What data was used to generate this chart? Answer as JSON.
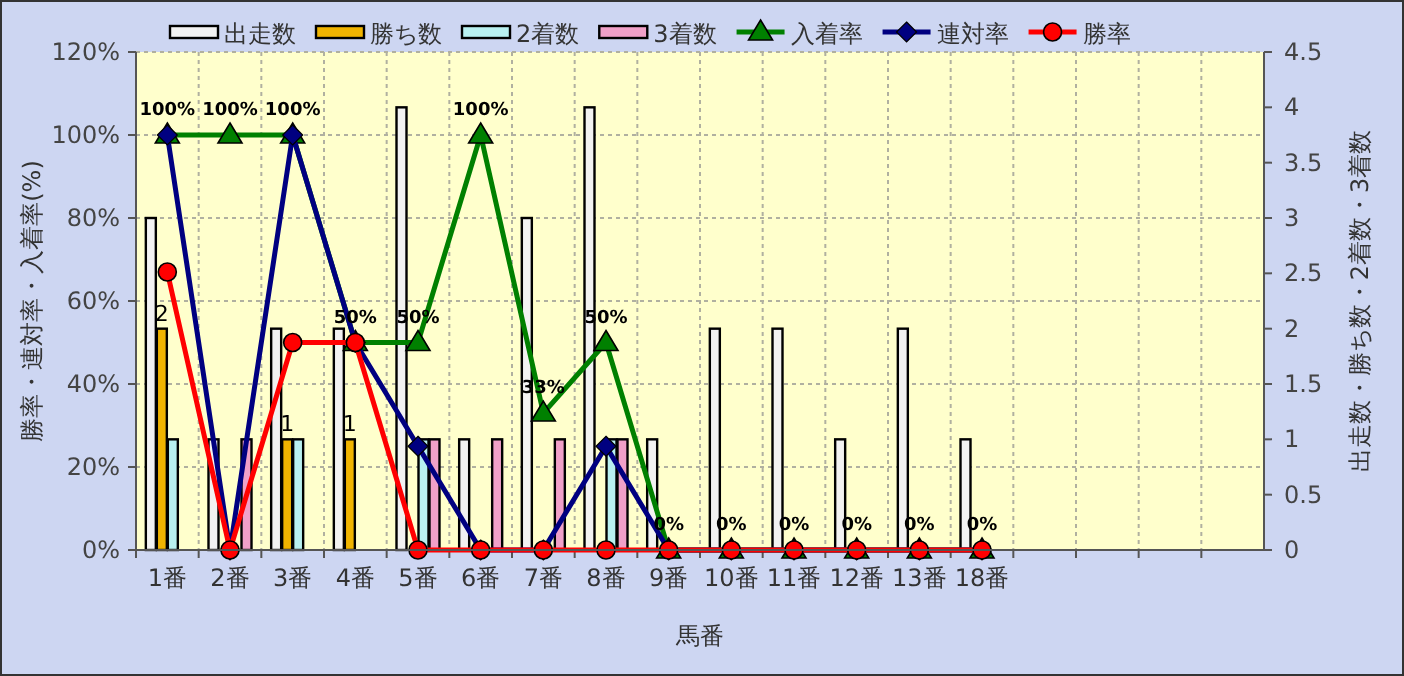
{
  "chart_data": {
    "type": "bar",
    "xlabel": "馬番",
    "ylabel": "勝率・連対率・入着率(%)",
    "y2label": "出走数・勝ち数・2着数・3着数",
    "categories": [
      "1番",
      "2番",
      "3番",
      "4番",
      "5番",
      "6番",
      "7番",
      "8番",
      "9番",
      "10番",
      "11番",
      "12番",
      "13番",
      "18番",
      null,
      null,
      null,
      null
    ],
    "ylim": [
      0,
      120
    ],
    "yticks": [
      {
        "value": 0,
        "label": "0%"
      },
      {
        "value": 20,
        "label": "20%"
      },
      {
        "value": 40,
        "label": "40%"
      },
      {
        "value": 60,
        "label": "60%"
      },
      {
        "value": 80,
        "label": "80%"
      },
      {
        "value": 100,
        "label": "100%"
      },
      {
        "value": 120,
        "label": "120%"
      }
    ],
    "y2lim": [
      0,
      4.5
    ],
    "y2ticks": [
      0,
      0.5,
      1,
      1.5,
      2,
      2.5,
      3,
      3.5,
      4,
      4.5
    ],
    "grid": true,
    "legend": "top",
    "series": [
      {
        "name": "出走数",
        "axis": "y2",
        "color": "#f2f2f2",
        "values": [
          3,
          1,
          2,
          2,
          4,
          1,
          3,
          4,
          1,
          2,
          2,
          1,
          2,
          1,
          null,
          null,
          null,
          null
        ]
      },
      {
        "name": "勝ち数",
        "axis": "y2",
        "color": "#f0b400",
        "values": [
          2,
          0,
          1,
          1,
          0,
          0,
          0,
          0,
          0,
          0,
          0,
          0,
          0,
          0,
          null,
          null,
          null,
          null
        ],
        "value_labels": [
          "2",
          null,
          "1",
          "1",
          null,
          null,
          null,
          null,
          null,
          null,
          null,
          null,
          null,
          null,
          null,
          null,
          null,
          null
        ]
      },
      {
        "name": "2着数",
        "axis": "y2",
        "color": "#b8f0f0",
        "values": [
          1,
          0,
          1,
          0,
          1,
          0,
          0,
          1,
          0,
          0,
          0,
          0,
          0,
          0,
          null,
          null,
          null,
          null
        ]
      },
      {
        "name": "3着数",
        "axis": "y2",
        "color": "#f0a0c8",
        "values": [
          0,
          1,
          0,
          0,
          1,
          1,
          1,
          1,
          0,
          0,
          0,
          0,
          0,
          0,
          null,
          null,
          null,
          null
        ]
      },
      {
        "name": "入着率",
        "type": "line",
        "color": "#008000",
        "marker": "triangle",
        "values": [
          100,
          100,
          100,
          50,
          50,
          100,
          33,
          50,
          0,
          0,
          0,
          0,
          0,
          0,
          null,
          null,
          null,
          null
        ],
        "value_labels": [
          "100%",
          "100%",
          "100%",
          "50%",
          "50%",
          "100%",
          "33%",
          "50%",
          "0%",
          "0%",
          "0%",
          "0%",
          "0%",
          "0%",
          null,
          null,
          null,
          null
        ]
      },
      {
        "name": "連対率",
        "type": "line",
        "color": "#000080",
        "marker": "diamond",
        "values": [
          100,
          0,
          100,
          50,
          25,
          0,
          0,
          25,
          0,
          0,
          0,
          0,
          0,
          0,
          null,
          null,
          null,
          null
        ]
      },
      {
        "name": "勝率",
        "type": "line",
        "color": "#ff0000",
        "marker": "circle",
        "values": [
          67,
          0,
          50,
          50,
          0,
          0,
          0,
          0,
          0,
          0,
          0,
          0,
          0,
          0,
          null,
          null,
          null,
          null
        ]
      }
    ]
  }
}
